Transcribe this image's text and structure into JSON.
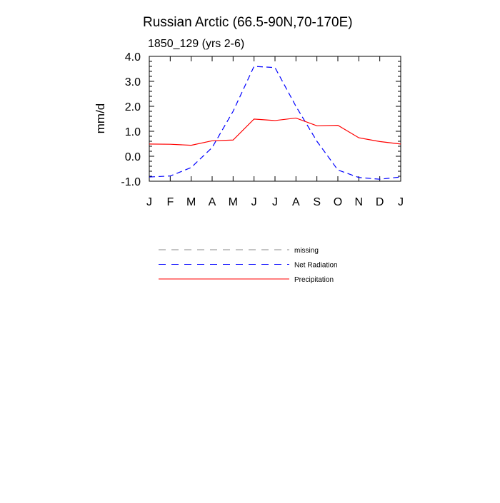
{
  "chart_data": {
    "type": "line",
    "title": "Russian Arctic (66.5-90N,70-170E)",
    "subtitle": "1850_129 (yrs 2-6)",
    "ylabel": "mm/d",
    "xlabel": "",
    "ylim": [
      -1.0,
      4.0
    ],
    "yticks": [
      "-1.0",
      "0.0",
      "1.0",
      "2.0",
      "3.0",
      "4.0"
    ],
    "yticks_values": [
      -1.0,
      0.0,
      1.0,
      2.0,
      3.0,
      4.0
    ],
    "x": [
      1,
      2,
      3,
      4,
      5,
      6,
      7,
      8,
      9,
      10,
      11,
      12,
      13
    ],
    "xticks": [
      "J",
      "F",
      "M",
      "A",
      "M",
      "J",
      "J",
      "A",
      "S",
      "O",
      "N",
      "D",
      "J"
    ],
    "xlim": [
      1,
      13
    ],
    "grid": false,
    "legend_position": "bottom",
    "series": [
      {
        "name": "Net Radiation",
        "color": "#0000ff",
        "style": "dashed",
        "values": [
          -0.83,
          -0.79,
          -0.45,
          0.35,
          1.8,
          3.6,
          3.55,
          2.0,
          0.6,
          -0.55,
          -0.85,
          -0.92,
          -0.83
        ]
      },
      {
        "name": "Precipitation",
        "color": "#ff0000",
        "style": "solid",
        "values": [
          0.49,
          0.48,
          0.44,
          0.62,
          0.65,
          1.49,
          1.43,
          1.53,
          1.22,
          1.24,
          0.74,
          0.59,
          0.49
        ]
      }
    ],
    "legend": [
      {
        "label": "missing",
        "color": "#888888",
        "style": "dashed"
      },
      {
        "label": "Net Radiation",
        "color": "#0000ff",
        "style": "dashed"
      },
      {
        "label": "Precipitation",
        "color": "#ff0000",
        "style": "solid"
      }
    ]
  }
}
